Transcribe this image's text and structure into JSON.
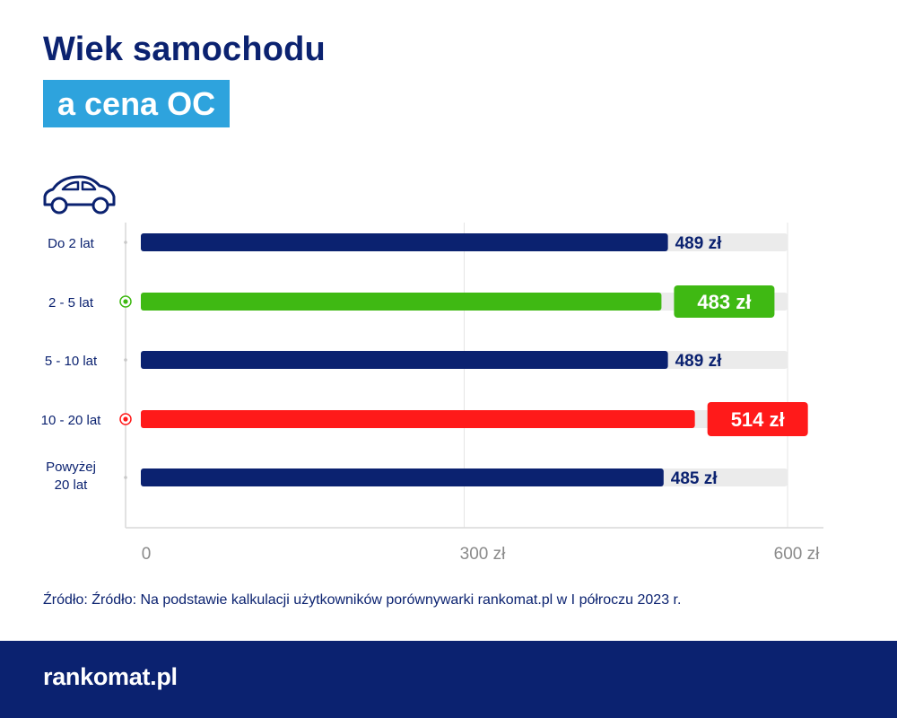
{
  "header": {
    "title_line1": "Wiek samochodu",
    "title_line2": "a cena OC"
  },
  "icons": {
    "car": "car-icon",
    "legend_dot": "target-icon"
  },
  "colors": {
    "navy": "#0b2270",
    "green": "#3fb913",
    "red": "#ff1a1a",
    "highlight_bg": "#2ea3dd",
    "track": "#ebebeb"
  },
  "chart_data": {
    "type": "bar",
    "orientation": "horizontal",
    "categories": [
      "Do 2 lat",
      "2 - 5 lat",
      "5 - 10 lat",
      "10 - 20 lat",
      "Powyżej 20 lat"
    ],
    "values": [
      489,
      483,
      489,
      514,
      485
    ],
    "value_labels": [
      "489 zł",
      "483 zł",
      "489 zł",
      "514 zł",
      "485 zł"
    ],
    "highlight": [
      "none",
      "min",
      "none",
      "max",
      "none"
    ],
    "xlim": [
      0,
      600
    ],
    "x_ticks": [
      0,
      300,
      600
    ],
    "x_tick_labels": [
      "0",
      "300 zł",
      "600 zł"
    ],
    "grid": true,
    "title": "",
    "xlabel": "",
    "ylabel": ""
  },
  "source": {
    "text": "Źródło: Źródło: Na podstawie kalkulacji użytkowników porównywarki rankomat.pl w I półroczu 2023 r."
  },
  "footer": {
    "brand": "rankomat.pl"
  }
}
